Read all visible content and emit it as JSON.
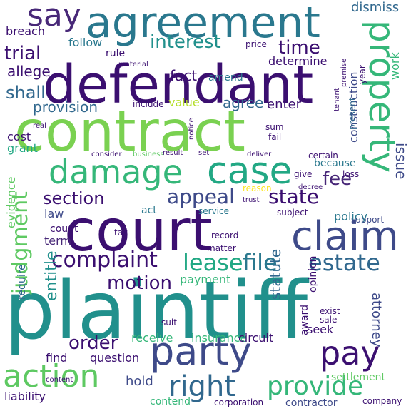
{
  "words": [
    {
      "text": "plaintiff",
      "color": "#21908c"
    },
    {
      "text": "defendant",
      "color": "#3b0f70"
    },
    {
      "text": "contract",
      "color": "#7ad151"
    },
    {
      "text": "court",
      "color": "#3b0f70"
    },
    {
      "text": "agreement",
      "color": "#2a788e"
    },
    {
      "text": "party",
      "color": "#3e4a89"
    },
    {
      "text": "property",
      "color": "#35b779"
    },
    {
      "text": "claim",
      "color": "#3e4a89"
    },
    {
      "text": "damage",
      "color": "#35b779"
    },
    {
      "text": "case",
      "color": "#22a884"
    },
    {
      "text": "say",
      "color": "#482878"
    },
    {
      "text": "action",
      "color": "#5ec962"
    },
    {
      "text": "pay",
      "color": "#3b0f70"
    },
    {
      "text": "right",
      "color": "#31688e"
    },
    {
      "text": "provide",
      "color": "#35b779"
    },
    {
      "text": "judgment",
      "color": "#5ec962"
    },
    {
      "text": "lease",
      "color": "#22a884"
    },
    {
      "text": "file",
      "color": "#2a788e"
    },
    {
      "text": "estate",
      "color": "#31688e"
    },
    {
      "text": "complaint",
      "color": "#3b0f70"
    },
    {
      "text": "appeal",
      "color": "#3e4a89"
    },
    {
      "text": "state",
      "color": "#3b0f70"
    },
    {
      "text": "section",
      "color": "#3b0f70"
    },
    {
      "text": "fee",
      "color": "#482878"
    },
    {
      "text": "interest",
      "color": "#21908c"
    },
    {
      "text": "time",
      "color": "#3b0f70"
    },
    {
      "text": "trial",
      "color": "#3b0f70"
    },
    {
      "text": "shall",
      "color": "#31688e"
    },
    {
      "text": "motion",
      "color": "#3b0f70"
    },
    {
      "text": "order",
      "color": "#3b0f70"
    },
    {
      "text": "allege",
      "color": "#3b0f70"
    },
    {
      "text": "provision",
      "color": "#31688e"
    },
    {
      "text": "entitle",
      "color": "#21908c"
    },
    {
      "text": "statute",
      "color": "#31688e"
    },
    {
      "text": "attorney",
      "color": "#3e4a89"
    },
    {
      "text": "issue",
      "color": "#3e4a89"
    },
    {
      "text": "construction",
      "color": "#3e4a89"
    },
    {
      "text": "dismiss",
      "color": "#31688e"
    },
    {
      "text": "enter",
      "color": "#3b0f70"
    },
    {
      "text": "fact",
      "color": "#3b0f70"
    },
    {
      "text": "agree",
      "color": "#31688e"
    },
    {
      "text": "determine",
      "color": "#3b0f70"
    },
    {
      "text": "follow",
      "color": "#2a788e"
    },
    {
      "text": "breach",
      "color": "#3b0f70"
    },
    {
      "text": "rule",
      "color": "#3b0f70"
    },
    {
      "text": "value",
      "color": "#b5de2b"
    },
    {
      "text": "work",
      "color": "#35b779"
    },
    {
      "text": "because",
      "color": "#2a788e"
    },
    {
      "text": "evidence",
      "color": "#5ec962"
    },
    {
      "text": "cost",
      "color": "#3b0f70"
    },
    {
      "text": "grant",
      "color": "#22a884"
    },
    {
      "text": "law",
      "color": "#3e4a89"
    },
    {
      "text": "term",
      "color": "#482878"
    },
    {
      "text": "policy",
      "color": "#2a788e"
    },
    {
      "text": "count",
      "color": "#3b0f70"
    },
    {
      "text": "payment",
      "color": "#35b779"
    },
    {
      "text": "require",
      "color": "#31688e"
    },
    {
      "text": "hold",
      "color": "#3e4a89"
    },
    {
      "text": "insurance",
      "color": "#35b779"
    },
    {
      "text": "seek",
      "color": "#3b0f70"
    },
    {
      "text": "opinion",
      "color": "#3b0f70"
    },
    {
      "text": "circuit",
      "color": "#3b0f70"
    },
    {
      "text": "receive",
      "color": "#35b779"
    },
    {
      "text": "award",
      "color": "#3b0f70"
    },
    {
      "text": "liability",
      "color": "#3b0f70"
    },
    {
      "text": "question",
      "color": "#3b0f70"
    },
    {
      "text": "find",
      "color": "#3b0f70"
    },
    {
      "text": "contend",
      "color": "#35b779"
    },
    {
      "text": "corporation",
      "color": "#3b0f70"
    },
    {
      "text": "contractor",
      "color": "#3e4a89"
    },
    {
      "text": "company",
      "color": "#3b0f70"
    },
    {
      "text": "settlement",
      "color": "#5ec962"
    },
    {
      "text": "record",
      "color": "#3b0f70"
    },
    {
      "text": "matter",
      "color": "#3b0f70"
    },
    {
      "text": "service",
      "color": "#2a788e"
    },
    {
      "text": "act",
      "color": "#2a788e"
    },
    {
      "text": "subject",
      "color": "#3b0f70"
    },
    {
      "text": "present",
      "color": "#31688e"
    },
    {
      "text": "year",
      "color": "#3b0f70"
    },
    {
      "text": "amend",
      "color": "#2a788e"
    },
    {
      "text": "include",
      "color": "#3b0f70"
    },
    {
      "text": "notice",
      "color": "#3b0f70"
    },
    {
      "text": "certain",
      "color": "#3b0f70"
    },
    {
      "text": "loss",
      "color": "#3b0f70"
    },
    {
      "text": "reason",
      "color": "#fde725"
    },
    {
      "text": "consider",
      "color": "#3b0f70"
    },
    {
      "text": "result",
      "color": "#3b0f70"
    },
    {
      "text": "business",
      "color": "#5ec962"
    },
    {
      "text": "set",
      "color": "#3b0f70"
    },
    {
      "text": "give",
      "color": "#3b0f70"
    },
    {
      "text": "fail",
      "color": "#3b0f70"
    },
    {
      "text": "sum",
      "color": "#3b0f70"
    },
    {
      "text": "tax",
      "color": "#3b0f70"
    },
    {
      "text": "support",
      "color": "#3e4a89"
    },
    {
      "text": "exist",
      "color": "#3b0f70"
    },
    {
      "text": "sale",
      "color": "#3b0f70"
    },
    {
      "text": "suit",
      "color": "#3b0f70"
    },
    {
      "text": "content",
      "color": "#3b0f70"
    },
    {
      "text": "price",
      "color": "#3b0f70"
    },
    {
      "text": "material",
      "color": "#3b0f70"
    },
    {
      "text": "real",
      "color": "#3b0f70"
    },
    {
      "text": "deliver",
      "color": "#3b0f70"
    },
    {
      "text": "decree",
      "color": "#3b0f70"
    },
    {
      "text": "trust",
      "color": "#3b0f70"
    },
    {
      "text": "tenant",
      "color": "#3b0f70"
    },
    {
      "text": "premise",
      "color": "#3b0f70"
    }
  ]
}
